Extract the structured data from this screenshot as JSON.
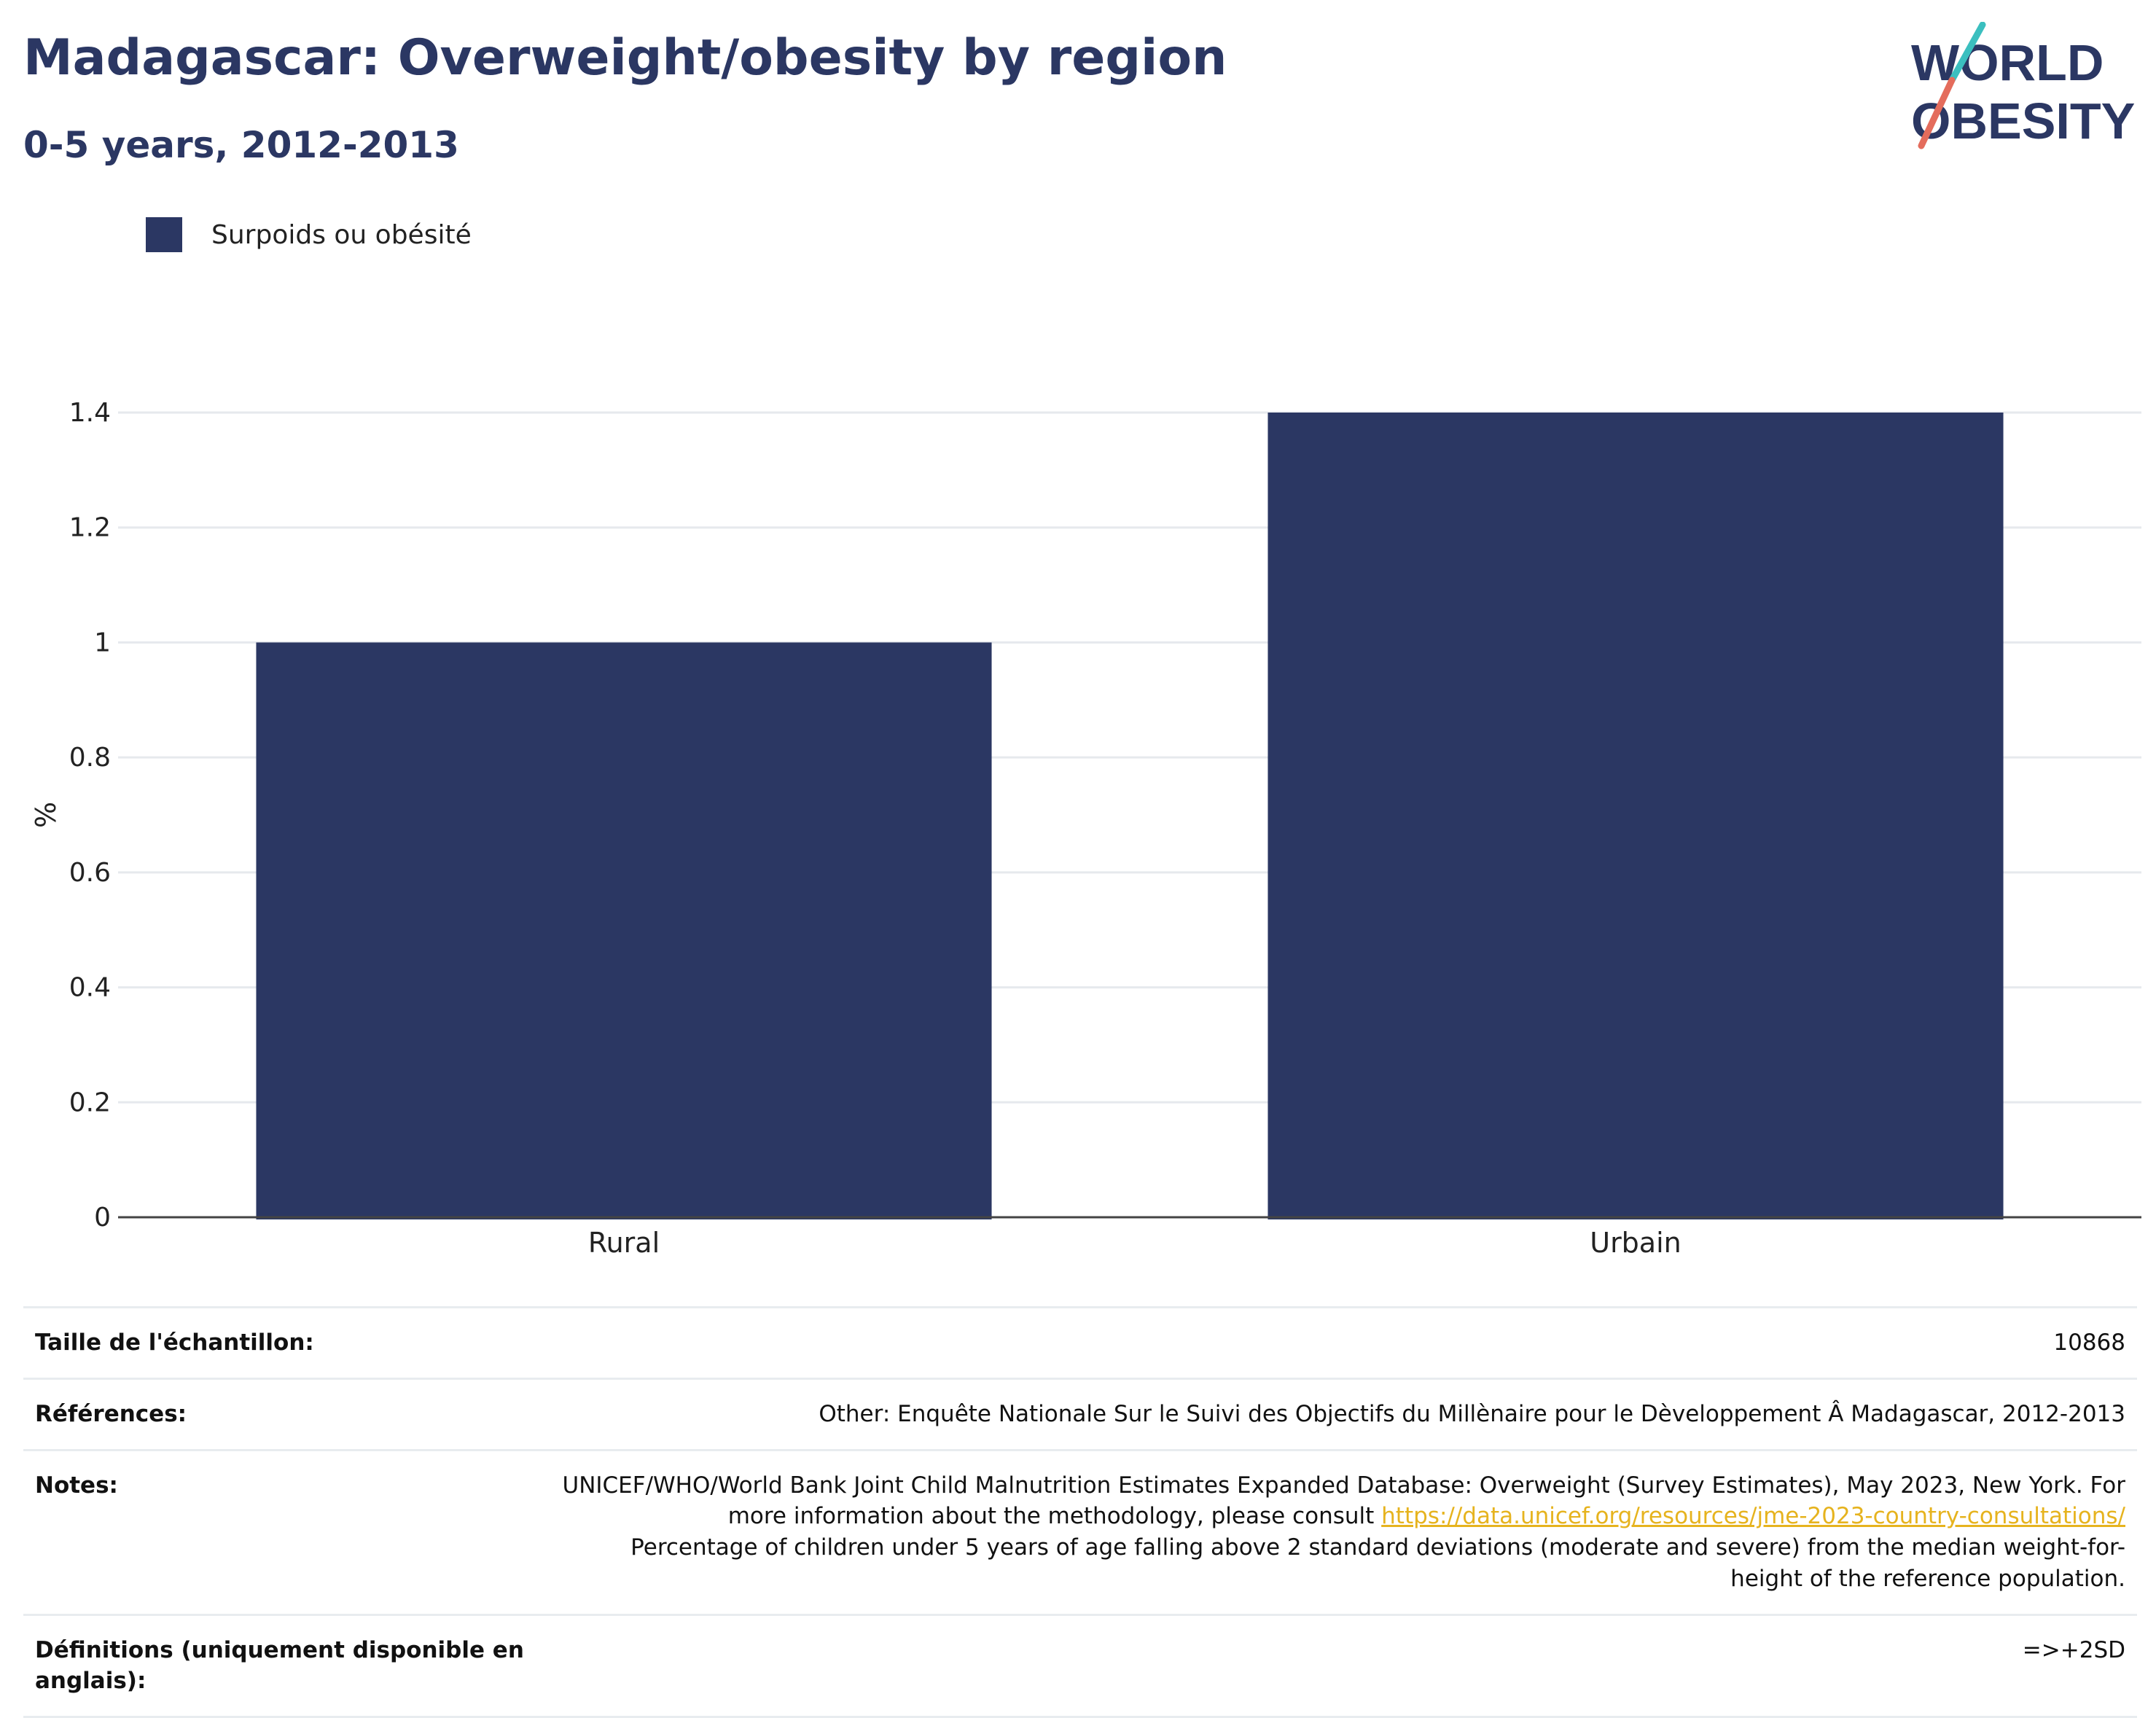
{
  "header": {
    "title": "Madagascar: Overweight/obesity by region",
    "subtitle": "0-5 years, 2012-2013"
  },
  "logo": {
    "line1": "WORLD",
    "line2": "OBESITY",
    "colors": {
      "text": "#2b3763",
      "slash_teal": "#3bbfbf",
      "slash_coral": "#e46c5c"
    }
  },
  "legend": {
    "label": "Surpoids ou obésité",
    "color": "#2b3763"
  },
  "chart_data": {
    "type": "bar",
    "categories": [
      "Rural",
      "Urbain"
    ],
    "series": [
      {
        "name": "Surpoids ou obésité",
        "values": [
          1.0,
          1.4
        ],
        "color": "#2b3763"
      }
    ],
    "ylabel": "%",
    "ylim": [
      0,
      1.4
    ],
    "yticks": [
      0,
      0.2,
      0.4,
      0.6,
      0.8,
      1,
      1.2,
      1.4
    ],
    "ytick_labels": [
      "0",
      "0.2",
      "0.4",
      "0.6",
      "0.8",
      "1",
      "1.2",
      "1.4"
    ],
    "grid": true,
    "legend_position": "top-left"
  },
  "info": {
    "sample_label": "Taille de l'échantillon:",
    "sample_value": "10868",
    "references_label": "Références:",
    "references_value": "Other: Enquête Nationale Sur le Suivi des Objectifs du Millènaire pour le Dèveloppement Â Madagascar, 2012-2013",
    "notes_label": "Notes:",
    "notes_text1": "UNICEF/WHO/World Bank Joint Child Malnutrition Estimates Expanded Database: Overweight (Survey Estimates), May 2023, New York. For more information about the methodology, please consult ",
    "notes_link": "https://data.unicef.org/resources/jme-2023-country-consultations/",
    "notes_text2": "Percentage of children under 5 years of age falling above 2 standard deviations (moderate and severe) from the median weight-for-height of the reference population.",
    "definitions_label": "Définitions (uniquement disponible en anglais):",
    "definitions_value": "=>+2SD"
  }
}
